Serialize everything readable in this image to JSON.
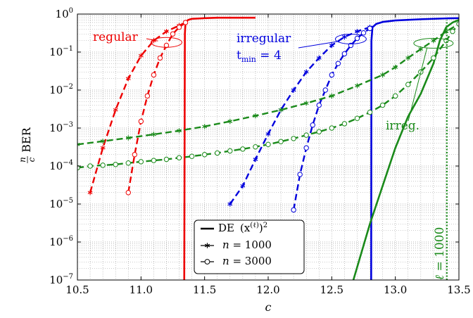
{
  "chart_data": {
    "type": "line",
    "title": "",
    "xlabel": "c",
    "ylabel_numerator": "n",
    "ylabel_denominator": "c",
    "ylabel_text": "BER",
    "xscale": "linear",
    "yscale": "log",
    "xlim": [
      10.5,
      13.5
    ],
    "ylim": [
      1e-07,
      1
    ],
    "x_ticks": [
      10.5,
      11.0,
      11.5,
      12.0,
      12.5,
      13.0,
      13.5
    ],
    "x_tick_labels": [
      "10.5",
      "11.0",
      "11.5",
      "12.0",
      "12.5",
      "13.0",
      "13.5"
    ],
    "y_ticks": [
      1e-07,
      1e-06,
      1e-05,
      0.0001,
      0.001,
      0.01,
      0.1,
      1
    ],
    "y_tick_labels": [
      {
        "base": "10",
        "exp": "−7"
      },
      {
        "base": "10",
        "exp": "−6"
      },
      {
        "base": "10",
        "exp": "−5"
      },
      {
        "base": "10",
        "exp": "−4"
      },
      {
        "base": "10",
        "exp": "−3"
      },
      {
        "base": "10",
        "exp": "−2"
      },
      {
        "base": "10",
        "exp": "−1"
      },
      {
        "base": "10",
        "exp": "0"
      }
    ],
    "grid": true,
    "legend_position": "bottom-center",
    "legend": [
      {
        "style": "solid",
        "label": "DE",
        "formula": "(x",
        "sup": "(ℓ)",
        "tail": ")",
        "tail_sup": "2"
      },
      {
        "style": "star",
        "var": "n",
        "label": " = 1000"
      },
      {
        "style": "circle",
        "var": "n",
        "label": " = 3000"
      }
    ],
    "annotations": {
      "regular": "regular",
      "irregular_line1": "irregular",
      "irregular_t": "t",
      "irregular_sub": "min",
      "irregular_eq": " = 4",
      "irreg": "irreg.",
      "ell_var": "ℓ",
      "ell_rest": " = 1000"
    },
    "colors": {
      "regular": "#ee0000",
      "irregular": "#0000dd",
      "irreg": "#1a8a1a"
    },
    "series": [
      {
        "group": "regular",
        "kind": "DE",
        "x": [
          11.34,
          11.345,
          11.35,
          11.37,
          11.4,
          11.5,
          11.6,
          11.7,
          11.9
        ],
        "y": [
          1e-07,
          0.3,
          0.6,
          0.7,
          0.75,
          0.78,
          0.8,
          0.8,
          0.8
        ]
      },
      {
        "group": "regular",
        "kind": "n1000",
        "x": [
          10.6,
          10.7,
          10.8,
          10.9,
          11.0,
          11.1,
          11.2,
          11.3,
          11.35
        ],
        "y": [
          2e-05,
          0.0003,
          0.003,
          0.02,
          0.08,
          0.2,
          0.35,
          0.5,
          0.6
        ]
      },
      {
        "group": "regular",
        "kind": "n3000",
        "x": [
          10.9,
          10.95,
          11.0,
          11.05,
          11.1,
          11.15,
          11.2,
          11.25,
          11.3,
          11.35
        ],
        "y": [
          2e-05,
          0.0002,
          0.0015,
          0.007,
          0.025,
          0.07,
          0.15,
          0.3,
          0.45,
          0.6
        ]
      },
      {
        "group": "irregular",
        "kind": "DE",
        "x": [
          12.81,
          12.812,
          12.82,
          12.85,
          12.9,
          13.0,
          13.2,
          13.4,
          13.5
        ],
        "y": [
          1e-07,
          0.2,
          0.45,
          0.55,
          0.62,
          0.68,
          0.73,
          0.77,
          0.78
        ]
      },
      {
        "group": "irregular",
        "kind": "n1000",
        "x": [
          11.7,
          11.8,
          11.9,
          12.0,
          12.1,
          12.2,
          12.3,
          12.4,
          12.5,
          12.6,
          12.7,
          12.8
        ],
        "y": [
          1e-05,
          3e-05,
          0.00015,
          0.0007,
          0.003,
          0.01,
          0.03,
          0.07,
          0.15,
          0.25,
          0.35,
          0.45
        ]
      },
      {
        "group": "irregular",
        "kind": "n3000",
        "x": [
          12.2,
          12.25,
          12.3,
          12.35,
          12.4,
          12.45,
          12.5,
          12.55,
          12.6,
          12.65,
          12.7,
          12.75,
          12.8
        ],
        "y": [
          7e-06,
          6e-05,
          0.0003,
          0.0012,
          0.004,
          0.01,
          0.025,
          0.05,
          0.09,
          0.15,
          0.23,
          0.32,
          0.42
        ]
      },
      {
        "group": "irreg",
        "kind": "DE",
        "x": [
          12.67,
          12.8,
          12.9,
          13.0,
          13.1,
          13.2,
          13.3,
          13.35,
          13.4,
          13.45,
          13.5
        ],
        "y": [
          1e-07,
          3e-06,
          3e-05,
          0.0003,
          0.002,
          0.008,
          0.05,
          0.2,
          0.45,
          0.6,
          0.7
        ]
      },
      {
        "group": "irreg",
        "kind": "n1000",
        "x": [
          10.5,
          10.7,
          10.9,
          11.1,
          11.3,
          11.5,
          11.7,
          11.9,
          12.1,
          12.3,
          12.5,
          12.7,
          12.9,
          13.0,
          13.1,
          13.2,
          13.3,
          13.4,
          13.5
        ],
        "y": [
          0.00037,
          0.00045,
          0.00055,
          0.00068,
          0.00085,
          0.0011,
          0.0015,
          0.0021,
          0.003,
          0.0045,
          0.007,
          0.013,
          0.025,
          0.04,
          0.07,
          0.12,
          0.2,
          0.35,
          0.55
        ]
      },
      {
        "group": "irreg",
        "kind": "n3000",
        "x": [
          10.5,
          10.6,
          10.7,
          10.8,
          10.9,
          11.0,
          11.1,
          11.2,
          11.3,
          11.4,
          11.5,
          11.6,
          11.7,
          11.8,
          11.9,
          12.0,
          12.1,
          12.2,
          12.3,
          12.4,
          12.5,
          12.6,
          12.7,
          12.8,
          12.9,
          13.0,
          13.1,
          13.2,
          13.3,
          13.4,
          13.45,
          13.5
        ],
        "y": [
          9e-05,
          0.0001,
          0.000105,
          0.00011,
          0.00012,
          0.00013,
          0.00014,
          0.00015,
          0.000165,
          0.00018,
          0.0002,
          0.00022,
          0.00025,
          0.00028,
          0.00032,
          0.00037,
          0.00044,
          0.00053,
          0.00065,
          0.0008,
          0.001,
          0.0013,
          0.0018,
          0.0026,
          0.004,
          0.007,
          0.014,
          0.03,
          0.07,
          0.2,
          0.35,
          0.55
        ]
      },
      {
        "group": "irreg",
        "kind": "threshold",
        "x": [
          13.405,
          13.405
        ],
        "y": [
          1e-07,
          0.7
        ]
      }
    ]
  }
}
